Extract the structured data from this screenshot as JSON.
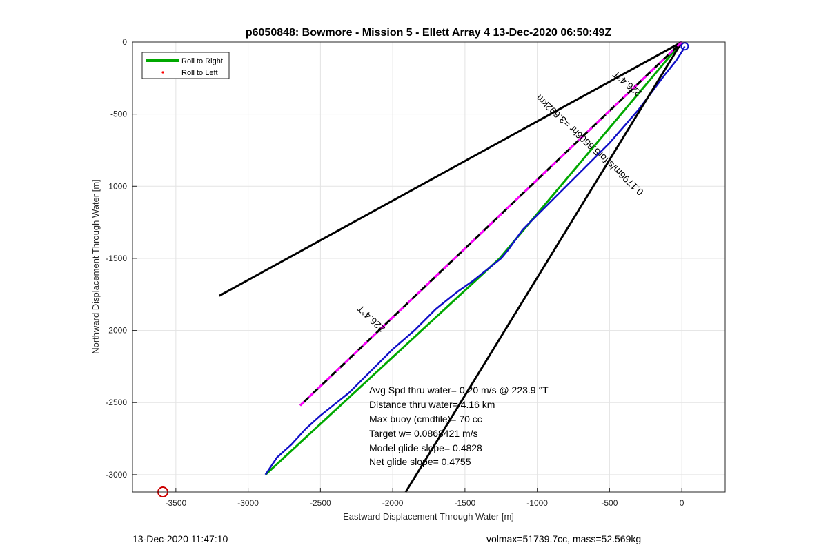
{
  "chart_data": {
    "type": "line",
    "title": "p6050848: Bowmore - Mission 5 - Ellett Array 4 13-Dec-2020 06:50:49Z",
    "xlabel": "Eastward Displacement Through Water [m]",
    "ylabel": "Northward Displacement Through Water [m]",
    "xlim": [
      -3800,
      300
    ],
    "ylim": [
      -3120,
      0
    ],
    "xticks": [
      -3500,
      -3000,
      -2500,
      -2000,
      -1500,
      -1000,
      -500,
      0
    ],
    "yticks": [
      0,
      -500,
      -1000,
      -1500,
      -2000,
      -2500,
      -3000
    ],
    "grid": true,
    "legend": {
      "position": "top-left",
      "entries": [
        {
          "label": "Roll to Right",
          "color": "#00a800",
          "style": "line"
        },
        {
          "label": "Roll to Left",
          "color": "#ff0000",
          "style": "dot"
        }
      ]
    },
    "series": [
      {
        "name": "Roll to Right",
        "color": "#00a800",
        "x": [
          0,
          -1260,
          -2880
        ],
        "y": [
          0,
          -1500,
          -3000
        ]
      },
      {
        "color": "#1010c8",
        "x": [
          20,
          5,
          -40,
          -120,
          -300,
          -500,
          -700,
          -850,
          -1000,
          -1100,
          -1200,
          -1250,
          -1350,
          -1450,
          -1550,
          -1700,
          -1850,
          -2000,
          -2100,
          -2200,
          -2300,
          -2400,
          -2500,
          -2600,
          -2700,
          -2800,
          -2860,
          -2880
        ],
        "y": [
          -30,
          -60,
          -130,
          -230,
          -470,
          -700,
          -900,
          -1050,
          -1200,
          -1300,
          -1440,
          -1500,
          -1580,
          -1660,
          -1730,
          -1850,
          -2000,
          -2130,
          -2230,
          -2330,
          -2430,
          -2510,
          -2590,
          -2680,
          -2790,
          -2880,
          -2970,
          -3000
        ]
      },
      {
        "color": "#000000",
        "x": [
          0,
          -3200
        ],
        "y": [
          0,
          -1760
        ]
      },
      {
        "color": "#000000",
        "x": [
          0,
          -1910
        ],
        "y": [
          0,
          -3120
        ]
      },
      {
        "color": "#000000",
        "dashcolor": "#ff00ff",
        "x": [
          0,
          -2640
        ],
        "y": [
          0,
          -2520
        ]
      }
    ],
    "markers": [
      {
        "x": -3590,
        "y": -3120,
        "color": "#cc0000"
      }
    ],
    "annotations": {
      "heading_near": "226.4°T",
      "heading_far": "226.4°T",
      "current": "0.1796m/s for5.6506hr =3.692km",
      "stats": [
        "Avg Spd thru water=  0.20 m/s @ 223.9 °T",
        "Distance thru water=  4.16 km",
        "Max buoy (cmdfile)= 70 cc",
        "Target w= 0.0868421 m/s",
        "Model glide slope= 0.4828",
        "Net glide slope= 0.4755"
      ]
    }
  },
  "footer": {
    "timestamp": "13-Dec-2020 11:47:10",
    "info": "volmax=51739.7cc, mass=52.569kg"
  }
}
